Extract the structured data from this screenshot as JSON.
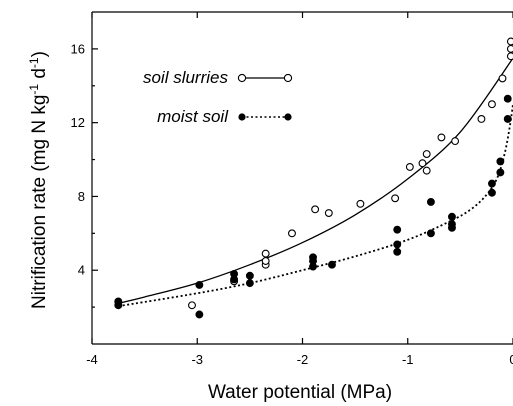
{
  "chart_data": {
    "type": "scatter",
    "xlabel": "Water potential (MPa)",
    "ylabel_parts": [
      "Nitrification rate (mg N kg",
      "-1",
      " d",
      "-1",
      ")"
    ],
    "xlim": [
      -4,
      0
    ],
    "ylim": [
      0,
      18
    ],
    "x_ticks": [
      -4,
      -3,
      -2,
      -1,
      0
    ],
    "x_tick_labels": [
      "-4",
      "-3",
      "-2",
      "-1",
      "0"
    ],
    "y_ticks": [
      4,
      8,
      12,
      16
    ],
    "y_tick_labels": [
      "4",
      "8",
      "12",
      "16"
    ],
    "legend_position": "top-left",
    "series": [
      {
        "name": "soil slurries",
        "marker": "open-circle",
        "line_style": "solid",
        "color": "#000000",
        "points": [
          [
            -3.75,
            2.3
          ],
          [
            -3.05,
            2.1
          ],
          [
            -2.65,
            3.4
          ],
          [
            -2.35,
            4.3
          ],
          [
            -2.35,
            4.5
          ],
          [
            -2.35,
            4.9
          ],
          [
            -2.1,
            6.0
          ],
          [
            -1.88,
            7.3
          ],
          [
            -1.75,
            7.1
          ],
          [
            -1.45,
            7.6
          ],
          [
            -1.12,
            7.9
          ],
          [
            -0.98,
            9.6
          ],
          [
            -0.86,
            9.8
          ],
          [
            -0.82,
            10.3
          ],
          [
            -0.82,
            9.4
          ],
          [
            -0.68,
            11.2
          ],
          [
            -0.55,
            11.0
          ],
          [
            -0.3,
            12.2
          ],
          [
            -0.2,
            13.0
          ],
          [
            -0.1,
            14.4
          ],
          [
            -0.02,
            16.4
          ],
          [
            -0.02,
            15.6
          ],
          [
            -0.02,
            16.0
          ]
        ],
        "fit": [
          [
            -3.75,
            2.2
          ],
          [
            -3.5,
            2.55
          ],
          [
            -3.0,
            3.3
          ],
          [
            -2.5,
            4.3
          ],
          [
            -2.0,
            5.5
          ],
          [
            -1.5,
            7.0
          ],
          [
            -1.0,
            8.95
          ],
          [
            -0.5,
            11.5
          ],
          [
            0.0,
            15.5
          ]
        ]
      },
      {
        "name": "moist soil",
        "marker": "filled-circle",
        "line_style": "dotted",
        "color": "#000000",
        "points": [
          [
            -3.75,
            2.3
          ],
          [
            -3.75,
            2.1
          ],
          [
            -2.98,
            3.2
          ],
          [
            -2.98,
            1.6
          ],
          [
            -2.65,
            3.8
          ],
          [
            -2.65,
            3.5
          ],
          [
            -2.5,
            3.7
          ],
          [
            -2.5,
            3.3
          ],
          [
            -1.9,
            4.7
          ],
          [
            -1.9,
            4.5
          ],
          [
            -1.9,
            4.2
          ],
          [
            -1.72,
            4.3
          ],
          [
            -1.1,
            6.2
          ],
          [
            -1.1,
            5.4
          ],
          [
            -1.1,
            5.0
          ],
          [
            -0.78,
            7.7
          ],
          [
            -0.78,
            6.0
          ],
          [
            -0.58,
            6.9
          ],
          [
            -0.58,
            6.5
          ],
          [
            -0.58,
            6.3
          ],
          [
            -0.2,
            8.2
          ],
          [
            -0.2,
            8.7
          ],
          [
            -0.12,
            9.3
          ],
          [
            -0.12,
            9.9
          ],
          [
            -0.05,
            12.2
          ],
          [
            -0.05,
            13.3
          ]
        ],
        "fit": [
          [
            -3.75,
            2.05
          ],
          [
            -3.0,
            2.75
          ],
          [
            -2.5,
            3.3
          ],
          [
            -2.0,
            4.0
          ],
          [
            -1.5,
            4.75
          ],
          [
            -1.0,
            5.65
          ],
          [
            -0.6,
            6.65
          ],
          [
            -0.4,
            7.3
          ],
          [
            -0.25,
            8.1
          ],
          [
            -0.15,
            9.0
          ],
          [
            -0.08,
            10.3
          ],
          [
            -0.03,
            11.8
          ],
          [
            0.0,
            13.0
          ]
        ]
      }
    ]
  }
}
